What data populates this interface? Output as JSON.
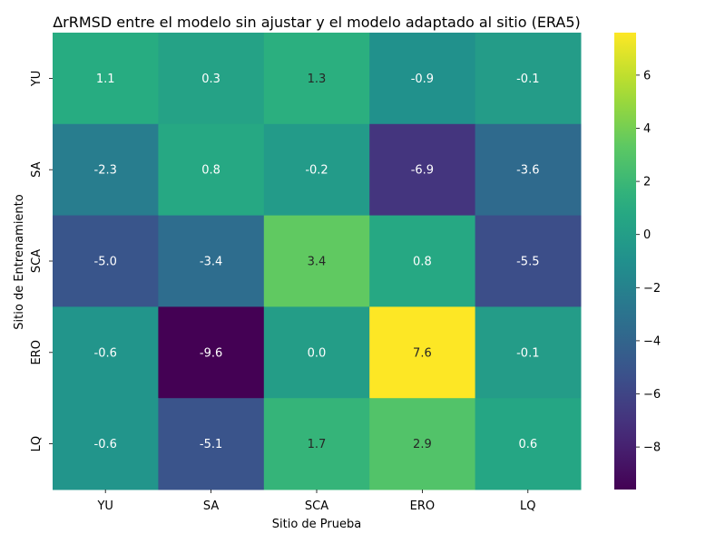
{
  "chart_data": {
    "type": "heatmap",
    "title": "ΔrRMSD entre el modelo sin ajustar y el modelo adaptado al sitio (ERA5)",
    "xlabel": "Sitio de Prueba",
    "ylabel": "Sitio de Entrenamiento",
    "x_categories": [
      "YU",
      "SA",
      "SCA",
      "ERO",
      "LQ"
    ],
    "y_categories": [
      "YU",
      "SA",
      "SCA",
      "ERO",
      "LQ"
    ],
    "values": [
      [
        1.1,
        0.3,
        1.3,
        -0.9,
        -0.1
      ],
      [
        -2.3,
        0.8,
        -0.2,
        -6.9,
        -3.6
      ],
      [
        -5.0,
        -3.4,
        3.4,
        0.8,
        -5.5
      ],
      [
        -0.6,
        -9.6,
        0.0,
        7.6,
        -0.1
      ],
      [
        -0.6,
        -5.1,
        1.7,
        2.9,
        0.6
      ]
    ],
    "cell_labels": [
      [
        "1.1",
        "0.3",
        "1.3",
        "-0.9",
        "-0.1"
      ],
      [
        "-2.3",
        "0.8",
        "-0.2",
        "-6.9",
        "-3.6"
      ],
      [
        "-5.0",
        "-3.4",
        "3.4",
        "0.8",
        "-5.5"
      ],
      [
        "-0.6",
        "-9.6",
        "0.0",
        "7.6",
        "-0.1"
      ],
      [
        "-0.6",
        "-5.1",
        "1.7",
        "2.9",
        "0.6"
      ]
    ],
    "colorbar": {
      "vmin": -9.6,
      "vmax": 7.6,
      "ticks": [
        -8,
        -6,
        -4,
        -2,
        0,
        2,
        4,
        6
      ],
      "tick_labels": [
        "−8",
        "−6",
        "−4",
        "−2",
        "0",
        "2",
        "4",
        "6"
      ],
      "colormap": "viridis"
    }
  }
}
